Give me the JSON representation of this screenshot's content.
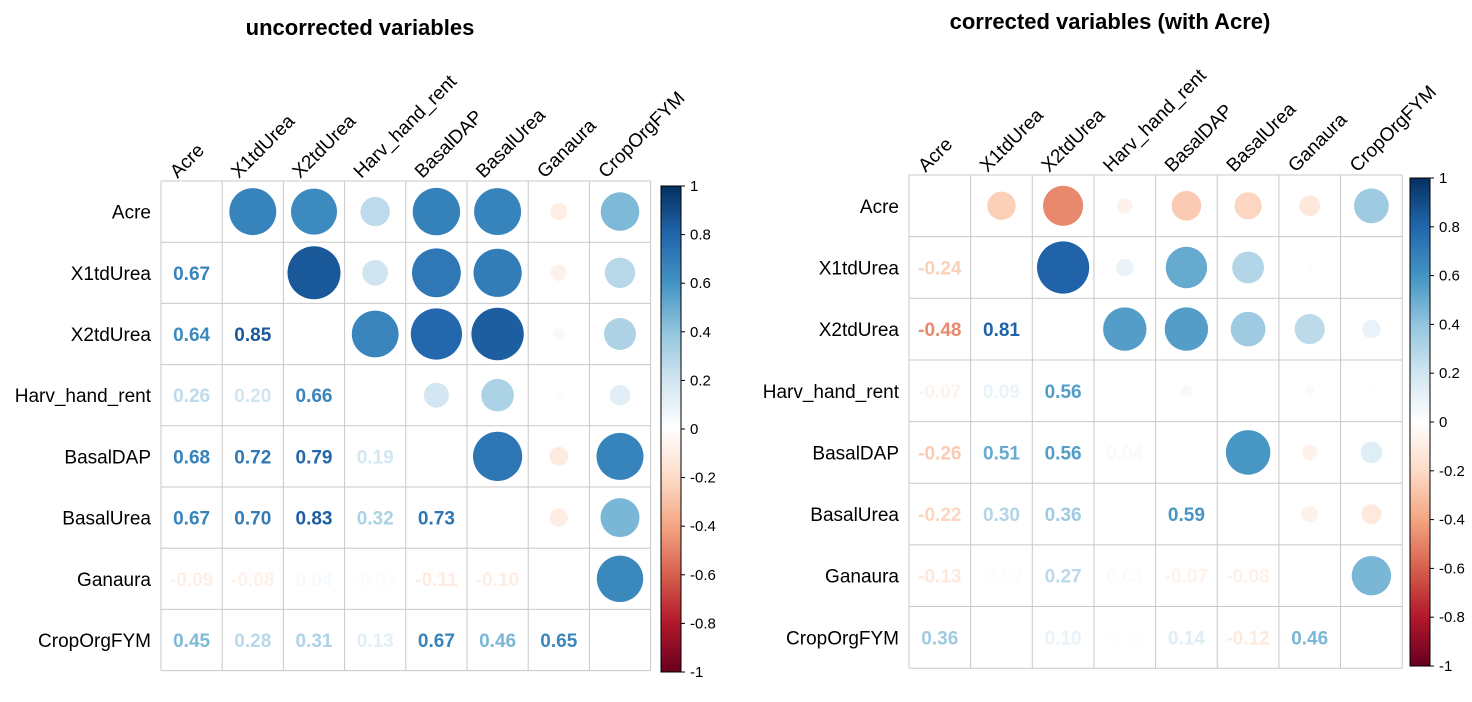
{
  "chart_data": [
    {
      "type": "heatmap",
      "title": "uncorrected variables",
      "variables": [
        "Acre",
        "X1tdUrea",
        "X2tdUrea",
        "Harv_hand_rent",
        "BasalDAP",
        "BasalUrea",
        "Ganaura",
        "CropOrgFYM"
      ],
      "lower_labels": [
        [
          "",
          "",
          "",
          "",
          "",
          "",
          "",
          ""
        ],
        [
          "0.67",
          "",
          "",
          "",
          "",
          "",
          "",
          ""
        ],
        [
          "0.64",
          "0.85",
          "",
          "",
          "",
          "",
          "",
          ""
        ],
        [
          "0.26",
          "0.20",
          "0.66",
          "",
          "",
          "",
          "",
          ""
        ],
        [
          "0.68",
          "0.72",
          "0.79",
          "0.19",
          "",
          "",
          "",
          ""
        ],
        [
          "0.67",
          "0.70",
          "0.83",
          "0.32",
          "0.73",
          "",
          "",
          ""
        ],
        [
          "-0.09",
          "-0.08",
          "0.04",
          "-0.02",
          "-0.11",
          "-0.10",
          "",
          ""
        ],
        [
          "0.45",
          "0.28",
          "0.31",
          "0.13",
          "0.67",
          "0.46",
          "0.65",
          ""
        ]
      ],
      "colorbar_ticks": [
        "-1",
        "-0.8",
        "-0.6",
        "-0.4",
        "-0.2",
        "0",
        "0.2",
        "0.4",
        "0.6",
        "0.8",
        "1"
      ],
      "colorscale": [
        "#67001F",
        "#B2182B",
        "#D6604D",
        "#F4A582",
        "#FDDBC7",
        "#FFFFFF",
        "#D1E5F0",
        "#92C5DE",
        "#4393C3",
        "#2166AC",
        "#053061"
      ]
    },
    {
      "type": "heatmap",
      "title": "corrected variables (with Acre)",
      "variables": [
        "Acre",
        "X1tdUrea",
        "X2tdUrea",
        "Harv_hand_rent",
        "BasalDAP",
        "BasalUrea",
        "Ganaura",
        "CropOrgFYM"
      ],
      "lower_labels": [
        [
          "",
          "",
          "",
          "",
          "",
          "",
          "",
          ""
        ],
        [
          "-0.24",
          "",
          "",
          "",
          "",
          "",
          "",
          ""
        ],
        [
          "-0.48",
          "0.81",
          "",
          "",
          "",
          "",
          "",
          ""
        ],
        [
          "-0.07",
          "0.09",
          "0.56",
          "",
          "",
          "",
          "",
          ""
        ],
        [
          "-0.26",
          "0.51",
          "0.56",
          "0.04",
          "",
          "",
          "",
          ""
        ],
        [
          "-0.22",
          "0.30",
          "0.36",
          "",
          "0.59",
          "",
          "",
          ""
        ],
        [
          "-0.13",
          "-0.02",
          "0.27",
          "0.03",
          "-0.07",
          "-0.08",
          "",
          ""
        ],
        [
          "0.36",
          "",
          "0.10",
          "-0.01",
          "0.14",
          "-0.12",
          "0.46",
          ""
        ]
      ],
      "colorbar_ticks": [
        "-1",
        "-0.8",
        "-0.6",
        "-0.4",
        "-0.2",
        "0",
        "0.2",
        "0.4",
        "0.6",
        "0.8",
        "1"
      ],
      "colorscale": [
        "#67001F",
        "#B2182B",
        "#D6604D",
        "#F4A582",
        "#FDDBC7",
        "#FFFFFF",
        "#D1E5F0",
        "#92C5DE",
        "#4393C3",
        "#2166AC",
        "#053061"
      ]
    }
  ]
}
